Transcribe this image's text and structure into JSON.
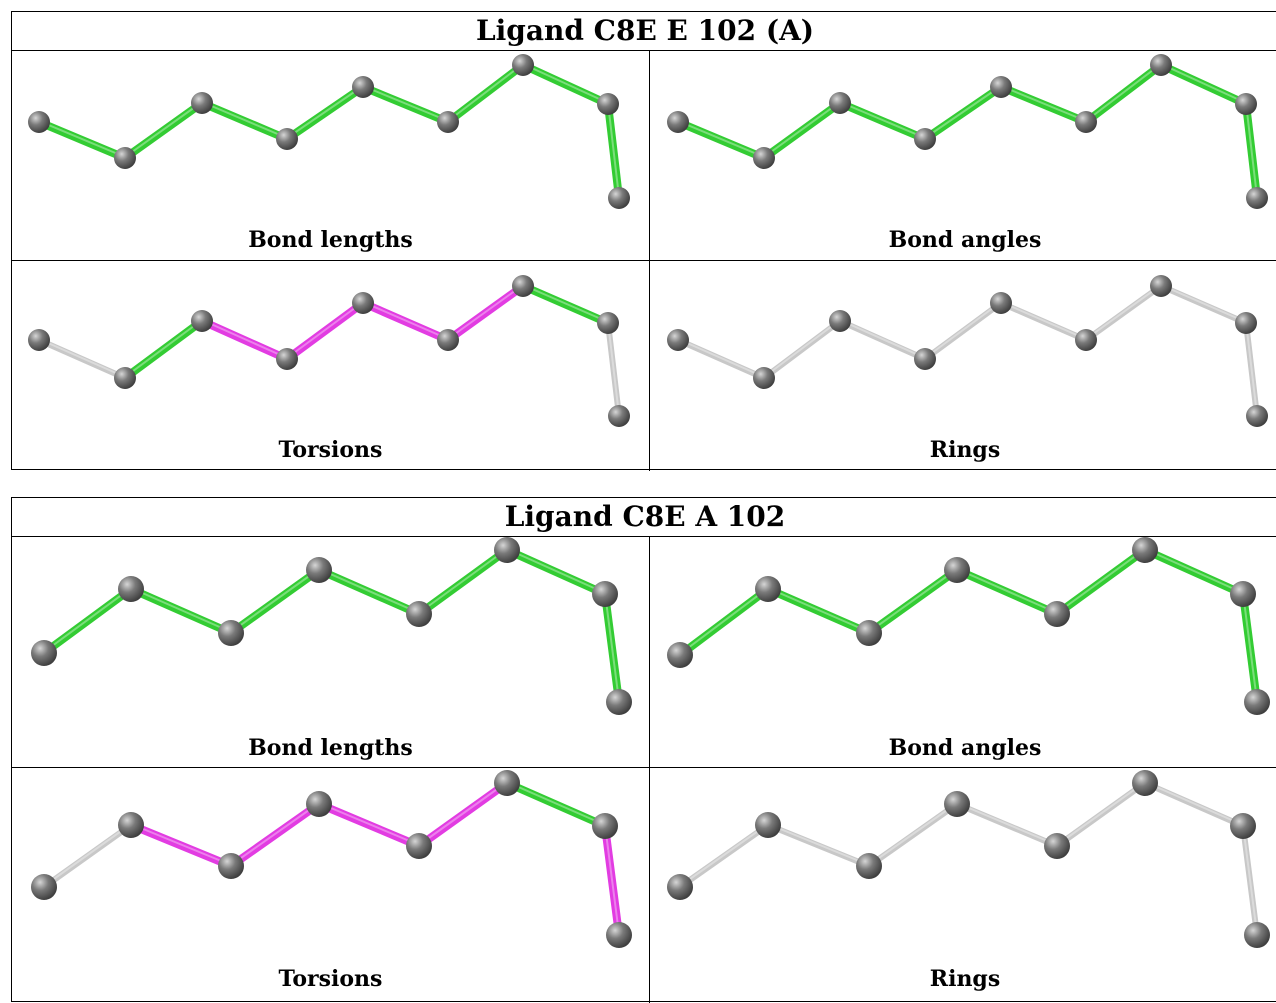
{
  "colors": {
    "green": "#33cc33",
    "magenta": "#e23ce2",
    "grey": "#c8c8c8",
    "atom": "#7a7a7a"
  },
  "tables": [
    {
      "title": "Ligand C8E E 102 (A)",
      "panels": [
        {
          "label": "Bond lengths",
          "bonds": [
            "green",
            "green",
            "green",
            "green",
            "green",
            "green",
            "green",
            "green",
            "green"
          ]
        },
        {
          "label": "Bond angles",
          "bonds": [
            "green",
            "green",
            "green",
            "green",
            "green",
            "green",
            "green",
            "green",
            "green"
          ]
        },
        {
          "label": "Torsions",
          "bonds": [
            "grey",
            "green",
            "magenta",
            "magenta",
            "magenta",
            "magenta",
            "green",
            "grey",
            "grey"
          ]
        },
        {
          "label": "Rings",
          "bonds": [
            "grey",
            "grey",
            "grey",
            "grey",
            "grey",
            "grey",
            "grey",
            "grey",
            "grey"
          ]
        }
      ]
    },
    {
      "title": "Ligand C8E A 102",
      "panels": [
        {
          "label": "Bond lengths",
          "bonds": [
            "green",
            "green",
            "green",
            "green",
            "green",
            "green",
            "green",
            "green",
            "green"
          ]
        },
        {
          "label": "Bond angles",
          "bonds": [
            "green",
            "green",
            "green",
            "green",
            "green",
            "green",
            "green",
            "green",
            "green"
          ]
        },
        {
          "label": "Torsions",
          "bonds": [
            "grey",
            "magenta",
            "magenta",
            "magenta",
            "magenta",
            "green",
            "magenta",
            "grey",
            "grey"
          ]
        },
        {
          "label": "Rings",
          "bonds": [
            "grey",
            "grey",
            "grey",
            "grey",
            "grey",
            "grey",
            "grey",
            "grey",
            "grey"
          ]
        }
      ]
    }
  ]
}
